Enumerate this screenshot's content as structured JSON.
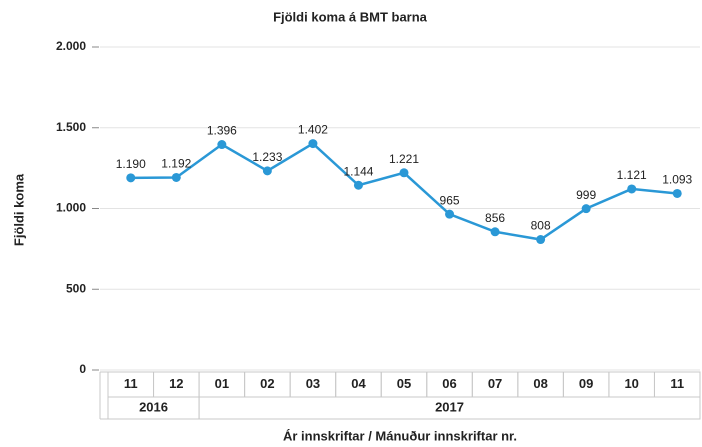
{
  "chart_data": {
    "type": "line",
    "title": "Fjöldi koma á  BMT barna",
    "ylabel": "Fjöldi koma",
    "xlabel": "Ár innskriftar / Mánuður innskriftar nr.",
    "categories": [
      "11",
      "12",
      "01",
      "02",
      "03",
      "04",
      "05",
      "06",
      "07",
      "08",
      "09",
      "10",
      "11"
    ],
    "x_groups": [
      {
        "label": "2016",
        "count": 2
      },
      {
        "label": "2017",
        "count": 11
      }
    ],
    "series": [
      {
        "name": "Fjöldi koma",
        "color": "#2a98d6",
        "values": [
          1190,
          1192,
          1396,
          1233,
          1402,
          1144,
          1221,
          965,
          856,
          808,
          999,
          1121,
          1093
        ],
        "value_labels": [
          "1.190",
          "1.192",
          "1.396",
          "1.233",
          "1.402",
          "1.144",
          "1.221",
          "965",
          "856",
          "808",
          "999",
          "1.121",
          "1.093"
        ]
      }
    ],
    "ylim": [
      0,
      2000
    ],
    "yticks": [
      0,
      500,
      {
        "value": 1000,
        "label": "1.000"
      },
      {
        "value": 1500,
        "label": "1.500"
      },
      {
        "value": 2000,
        "label": "2.000"
      }
    ],
    "grid": true
  }
}
